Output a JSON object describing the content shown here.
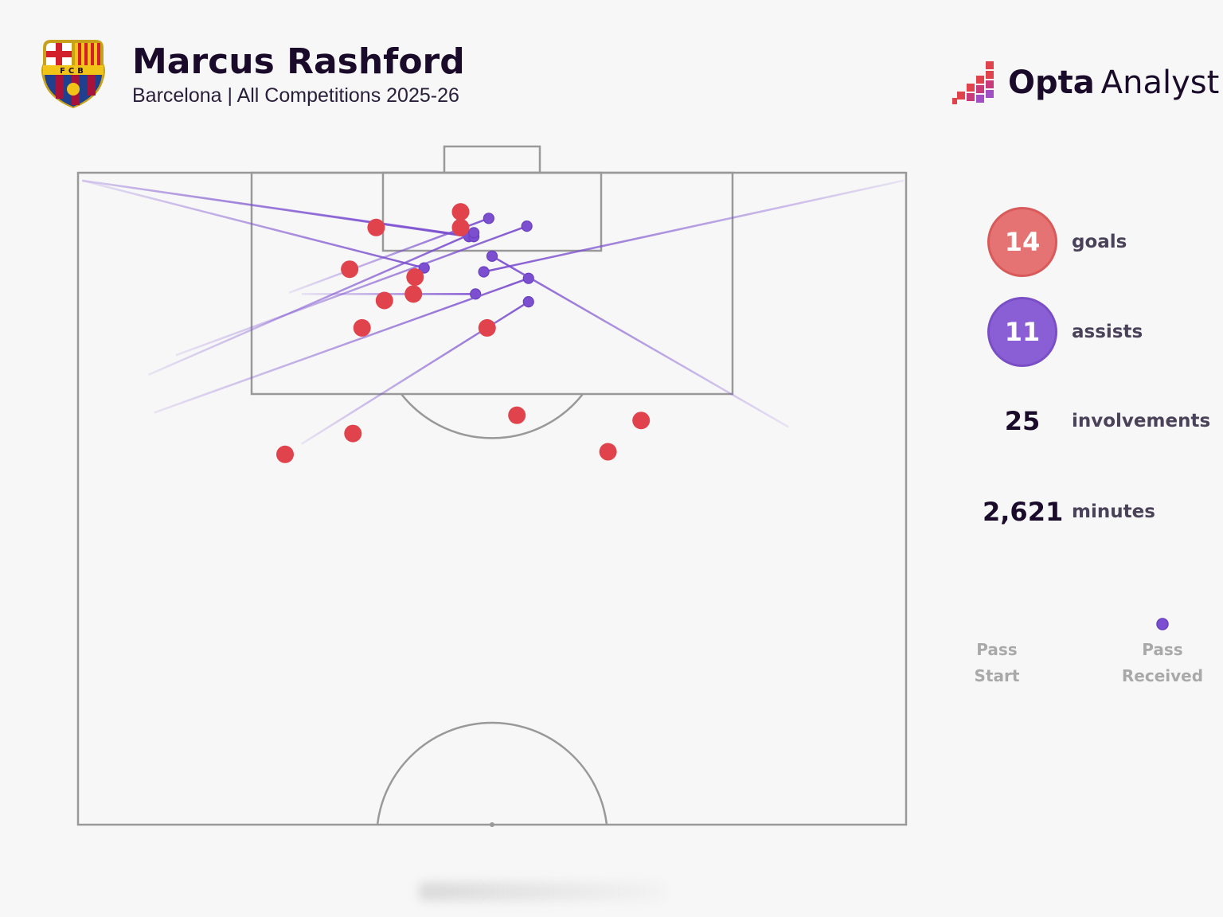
{
  "header": {
    "title": "Marcus Rashford",
    "subtitle": "Barcelona | All Competitions 2025-26",
    "crest_text": "FCB",
    "brand_bold": "Opta",
    "brand_light": "Analyst"
  },
  "colors": {
    "goal": "#e0434c",
    "assist": "#7b4fd0",
    "pitch_line": "#999999",
    "background": "#f7f7f7"
  },
  "stats": {
    "goals": {
      "value": "14",
      "label": "goals"
    },
    "assists": {
      "value": "11",
      "label": "assists"
    },
    "involvements": {
      "value": "25",
      "label": "involvements"
    },
    "minutes": {
      "value": "2,621",
      "label": "minutes"
    }
  },
  "legend": {
    "start_line1": "Pass",
    "start_line2": "Start",
    "end_line1": "Pass",
    "end_line2": "Received"
  },
  "chart_data": {
    "type": "scatter",
    "title": "Marcus Rashford",
    "subtitle": "Barcelona | All Competitions 2025-26",
    "coordinate_system": "half-pitch, x across 0-100 left to right, y distance from goal line 0-50",
    "goals": [
      {
        "x": 46.2,
        "y": 3.0
      },
      {
        "x": 46.2,
        "y": 4.2
      },
      {
        "x": 36.0,
        "y": 4.2
      },
      {
        "x": 32.8,
        "y": 7.4
      },
      {
        "x": 40.7,
        "y": 8.0
      },
      {
        "x": 40.5,
        "y": 9.3
      },
      {
        "x": 37.0,
        "y": 9.8
      },
      {
        "x": 34.3,
        "y": 11.9
      },
      {
        "x": 49.4,
        "y": 11.9
      },
      {
        "x": 53.0,
        "y": 18.6
      },
      {
        "x": 33.2,
        "y": 20.0
      },
      {
        "x": 25.0,
        "y": 21.6
      },
      {
        "x": 68.0,
        "y": 19.0
      },
      {
        "x": 64.0,
        "y": 21.4
      }
    ],
    "assists": [
      {
        "x1": 0.5,
        "y1": 0.6,
        "x2": 47.2,
        "y2": 4.9
      },
      {
        "x1": 0.5,
        "y1": 0.6,
        "x2": 47.8,
        "y2": 4.9
      },
      {
        "x1": 0.5,
        "y1": 0.6,
        "x2": 41.8,
        "y2": 7.3
      },
      {
        "x1": 25.5,
        "y1": 9.2,
        "x2": 49.6,
        "y2": 3.5
      },
      {
        "x1": 11.8,
        "y1": 14.0,
        "x2": 54.2,
        "y2": 4.1
      },
      {
        "x1": 8.5,
        "y1": 15.5,
        "x2": 47.8,
        "y2": 4.6
      },
      {
        "x1": 27.0,
        "y1": 9.3,
        "x2": 48.0,
        "y2": 9.3
      },
      {
        "x1": 9.2,
        "y1": 18.4,
        "x2": 54.4,
        "y2": 8.1
      },
      {
        "x1": 99.7,
        "y1": 0.6,
        "x2": 49.0,
        "y2": 7.6
      },
      {
        "x1": 85.8,
        "y1": 19.5,
        "x2": 50.0,
        "y2": 6.4
      },
      {
        "x1": 27.0,
        "y1": 20.8,
        "x2": 54.4,
        "y2": 9.9
      }
    ]
  }
}
